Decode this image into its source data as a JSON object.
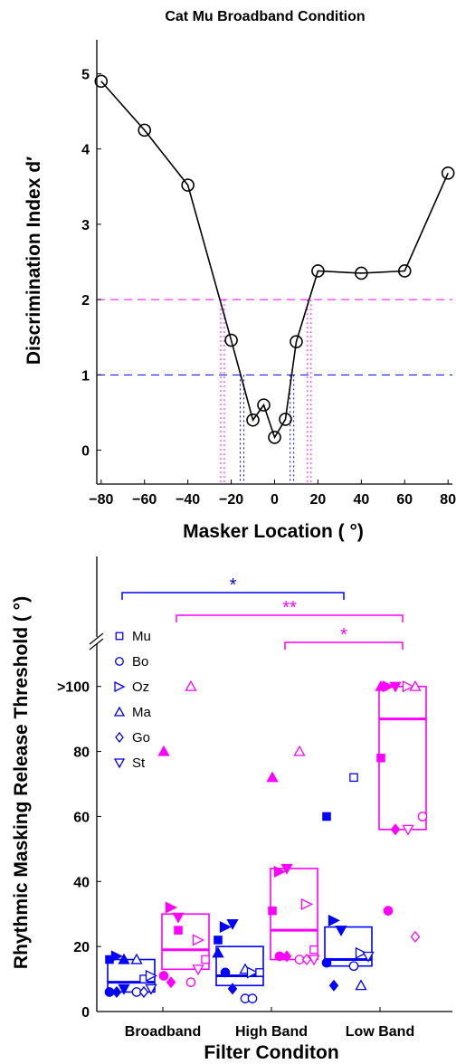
{
  "chart_data": [
    {
      "type": "line",
      "title": "Cat Mu Broadband Condition",
      "xlabel": "Masker Location ( °)",
      "ylabel": "Discrimination Index d′",
      "x_ticks": [
        "−80",
        "−60",
        "−40",
        "−20",
        "0",
        "20",
        "40",
        "60",
        "80"
      ],
      "x_tick_values": [
        -80,
        -60,
        -40,
        -20,
        0,
        20,
        40,
        60,
        80
      ],
      "y_ticks": [
        "0",
        "1",
        "2",
        "3",
        "4",
        "5"
      ],
      "y_tick_values": [
        0,
        1,
        2,
        3,
        4,
        5
      ],
      "xlim": [
        -82,
        82
      ],
      "ylim": [
        -0.45,
        5.45
      ],
      "grid": false,
      "series": [
        {
          "x": [
            -80,
            -60,
            -40,
            -20,
            -10,
            -5,
            0,
            5,
            10,
            20,
            40,
            60,
            80
          ],
          "y": [
            4.9,
            4.25,
            3.52,
            1.46,
            0.4,
            0.6,
            0.17,
            0.41,
            1.44,
            2.38,
            2.35,
            2.38,
            3.68
          ],
          "color": "#000000"
        }
      ],
      "reference_lines": [
        {
          "y": 2,
          "color": "#ff00ff",
          "crossings_x": [
            -24,
            16
          ]
        },
        {
          "y": 1,
          "color": "#0000ff",
          "crossings_x": [
            -15,
            8
          ]
        }
      ]
    },
    {
      "type": "scatter",
      "xlabel": "Filter Conditon",
      "ylabel": "Rhythmic Masking Release Threshold ( °)",
      "categories": [
        "Broadband",
        "High Band",
        "Low Band"
      ],
      "y_ticks": [
        "0",
        "20",
        "40",
        "60",
        "80",
        ">100"
      ],
      "y_tick_values": [
        0,
        20,
        40,
        60,
        80,
        100
      ],
      "ylim": [
        0,
        140
      ],
      "grid": false,
      "legend": {
        "position": "top-left",
        "entries": [
          {
            "label": "Mu",
            "marker": "square"
          },
          {
            "label": "Bo",
            "marker": "circle"
          },
          {
            "label": "Oz",
            "marker": "triangle-right"
          },
          {
            "label": "Ma",
            "marker": "triangle-up"
          },
          {
            "label": "Go",
            "marker": "diamond"
          },
          {
            "label": "St",
            "marker": "triangle-down"
          }
        ]
      },
      "colors": {
        "blue": "#0000ff",
        "magenta": "#ff00ff"
      },
      "boxes": [
        {
          "category": "Broadband",
          "group": "blue",
          "low": 6,
          "high": 16,
          "median": 9
        },
        {
          "category": "Broadband",
          "group": "magenta",
          "low": 13,
          "high": 30,
          "median": 19
        },
        {
          "category": "High Band",
          "group": "blue",
          "low": 8,
          "high": 20,
          "median": 11
        },
        {
          "category": "High Band",
          "group": "magenta",
          "low": 16,
          "high": 44,
          "median": 25
        },
        {
          "category": "Low Band",
          "group": "blue",
          "low": 14,
          "high": 26,
          "median": 16
        },
        {
          "category": "Low Band",
          "group": "magenta",
          "low": 56,
          "high": 100,
          "median": 90
        }
      ],
      "points": [
        {
          "category": "Broadband",
          "group": "blue",
          "marker": "square",
          "filled": true,
          "y": 16
        },
        {
          "category": "Broadband",
          "group": "blue",
          "marker": "triangle-right",
          "filled": true,
          "y": 17
        },
        {
          "category": "Broadband",
          "group": "blue",
          "marker": "triangle-up",
          "filled": true,
          "y": 16
        },
        {
          "category": "Broadband",
          "group": "blue",
          "marker": "circle",
          "filled": true,
          "y": 6
        },
        {
          "category": "Broadband",
          "group": "blue",
          "marker": "diamond",
          "filled": true,
          "y": 6
        },
        {
          "category": "Broadband",
          "group": "blue",
          "marker": "triangle-down",
          "filled": true,
          "y": 7
        },
        {
          "category": "Broadband",
          "group": "blue",
          "marker": "triangle-up",
          "filled": false,
          "y": 16
        },
        {
          "category": "Broadband",
          "group": "blue",
          "marker": "square",
          "filled": false,
          "y": 10
        },
        {
          "category": "Broadband",
          "group": "blue",
          "marker": "triangle-right",
          "filled": false,
          "y": 11
        },
        {
          "category": "Broadband",
          "group": "blue",
          "marker": "circle",
          "filled": false,
          "y": 6
        },
        {
          "category": "Broadband",
          "group": "blue",
          "marker": "diamond",
          "filled": false,
          "y": 6
        },
        {
          "category": "Broadband",
          "group": "blue",
          "marker": "triangle-down",
          "filled": false,
          "y": 7
        },
        {
          "category": "Broadband",
          "group": "magenta",
          "marker": "triangle-up",
          "filled": true,
          "y": 80
        },
        {
          "category": "Broadband",
          "group": "magenta",
          "marker": "triangle-right",
          "filled": true,
          "y": 32
        },
        {
          "category": "Broadband",
          "group": "magenta",
          "marker": "square",
          "filled": true,
          "y": 25
        },
        {
          "category": "Broadband",
          "group": "magenta",
          "marker": "circle",
          "filled": true,
          "y": 11
        },
        {
          "category": "Broadband",
          "group": "magenta",
          "marker": "diamond",
          "filled": true,
          "y": 9
        },
        {
          "category": "Broadband",
          "group": "magenta",
          "marker": "triangle-down",
          "filled": true,
          "y": 29
        },
        {
          "category": "Broadband",
          "group": "magenta",
          "marker": "triangle-up",
          "filled": false,
          "y": 100
        },
        {
          "category": "Broadband",
          "group": "magenta",
          "marker": "triangle-right",
          "filled": false,
          "y": 22
        },
        {
          "category": "Broadband",
          "group": "magenta",
          "marker": "square",
          "filled": false,
          "y": 16
        },
        {
          "category": "Broadband",
          "group": "magenta",
          "marker": "circle",
          "filled": false,
          "y": 9
        },
        {
          "category": "Broadband",
          "group": "magenta",
          "marker": "triangle-down",
          "filled": false,
          "y": 13
        },
        {
          "category": "High Band",
          "group": "blue",
          "marker": "square",
          "filled": true,
          "y": 22
        },
        {
          "category": "High Band",
          "group": "blue",
          "marker": "triangle-right",
          "filled": true,
          "y": 26
        },
        {
          "category": "High Band",
          "group": "blue",
          "marker": "triangle-down",
          "filled": true,
          "y": 27
        },
        {
          "category": "High Band",
          "group": "blue",
          "marker": "triangle-up",
          "filled": true,
          "y": 18
        },
        {
          "category": "High Band",
          "group": "blue",
          "marker": "circle",
          "filled": true,
          "y": 12
        },
        {
          "category": "High Band",
          "group": "blue",
          "marker": "diamond",
          "filled": true,
          "y": 7
        },
        {
          "category": "High Band",
          "group": "blue",
          "marker": "triangle-up",
          "filled": false,
          "y": 13
        },
        {
          "category": "High Band",
          "group": "blue",
          "marker": "triangle-right",
          "filled": false,
          "y": 12
        },
        {
          "category": "High Band",
          "group": "blue",
          "marker": "square",
          "filled": false,
          "y": 12
        },
        {
          "category": "High Band",
          "group": "blue",
          "marker": "circle",
          "filled": false,
          "y": 4
        },
        {
          "category": "High Band",
          "group": "blue",
          "marker": "circle",
          "filled": false,
          "y": 4
        },
        {
          "category": "High Band",
          "group": "magenta",
          "marker": "triangle-up",
          "filled": true,
          "y": 72
        },
        {
          "category": "High Band",
          "group": "magenta",
          "marker": "triangle-right",
          "filled": true,
          "y": 43
        },
        {
          "category": "High Band",
          "group": "magenta",
          "marker": "triangle-down",
          "filled": true,
          "y": 44
        },
        {
          "category": "High Band",
          "group": "magenta",
          "marker": "square",
          "filled": true,
          "y": 31
        },
        {
          "category": "High Band",
          "group": "magenta",
          "marker": "circle",
          "filled": true,
          "y": 17
        },
        {
          "category": "High Band",
          "group": "magenta",
          "marker": "diamond",
          "filled": true,
          "y": 17
        },
        {
          "category": "High Band",
          "group": "magenta",
          "marker": "triangle-up",
          "filled": false,
          "y": 80
        },
        {
          "category": "High Band",
          "group": "magenta",
          "marker": "triangle-right",
          "filled": false,
          "y": 33
        },
        {
          "category": "High Band",
          "group": "magenta",
          "marker": "square",
          "filled": false,
          "y": 19
        },
        {
          "category": "High Band",
          "group": "magenta",
          "marker": "circle",
          "filled": false,
          "y": 16
        },
        {
          "category": "High Band",
          "group": "magenta",
          "marker": "diamond",
          "filled": false,
          "y": 16
        },
        {
          "category": "High Band",
          "group": "magenta",
          "marker": "triangle-down",
          "filled": false,
          "y": 16
        },
        {
          "category": "Low Band",
          "group": "blue",
          "marker": "square",
          "filled": true,
          "y": 60
        },
        {
          "category": "Low Band",
          "group": "blue",
          "marker": "triangle-right",
          "filled": true,
          "y": 28
        },
        {
          "category": "Low Band",
          "group": "blue",
          "marker": "triangle-down",
          "filled": true,
          "y": 25
        },
        {
          "category": "Low Band",
          "group": "blue",
          "marker": "circle",
          "filled": true,
          "y": 15
        },
        {
          "category": "Low Band",
          "group": "blue",
          "marker": "diamond",
          "filled": true,
          "y": 8
        },
        {
          "category": "Low Band",
          "group": "blue",
          "marker": "square",
          "filled": false,
          "y": 72
        },
        {
          "category": "Low Band",
          "group": "blue",
          "marker": "triangle-right",
          "filled": false,
          "y": 18
        },
        {
          "category": "Low Band",
          "group": "blue",
          "marker": "triangle-down",
          "filled": false,
          "y": 17
        },
        {
          "category": "Low Band",
          "group": "blue",
          "marker": "circle",
          "filled": false,
          "y": 14
        },
        {
          "category": "Low Band",
          "group": "blue",
          "marker": "triangle-up",
          "filled": false,
          "y": 8
        },
        {
          "category": "Low Band",
          "group": "magenta",
          "marker": "square",
          "filled": true,
          "y": 78
        },
        {
          "category": "Low Band",
          "group": "magenta",
          "marker": "circle",
          "filled": true,
          "y": 31
        },
        {
          "category": "Low Band",
          "group": "magenta",
          "marker": "diamond",
          "filled": true,
          "y": 56
        },
        {
          "category": "Low Band",
          "group": "magenta",
          "marker": "triangle-up",
          "filled": true,
          "y": 100
        },
        {
          "category": "Low Band",
          "group": "magenta",
          "marker": "triangle-right",
          "filled": true,
          "y": 100
        },
        {
          "category": "Low Band",
          "group": "magenta",
          "marker": "triangle-down",
          "filled": true,
          "y": 100
        },
        {
          "category": "Low Band",
          "group": "magenta",
          "marker": "triangle-right",
          "filled": false,
          "y": 100
        },
        {
          "category": "Low Band",
          "group": "magenta",
          "marker": "triangle-up",
          "filled": false,
          "y": 100
        },
        {
          "category": "Low Band",
          "group": "magenta",
          "marker": "circle",
          "filled": false,
          "y": 60
        },
        {
          "category": "Low Band",
          "group": "magenta",
          "marker": "triangle-down",
          "filled": false,
          "y": 56
        },
        {
          "category": "Low Band",
          "group": "magenta",
          "marker": "diamond",
          "filled": false,
          "y": 23
        }
      ],
      "significance": [
        {
          "from": "Broadband",
          "to": "Low Band",
          "group": "blue",
          "label": "*"
        },
        {
          "from": "Broadband",
          "to": "Low Band",
          "group": "magenta",
          "label": "**"
        },
        {
          "from": "High Band",
          "to": "Low Band",
          "group": "magenta",
          "label": "*"
        }
      ]
    }
  ]
}
